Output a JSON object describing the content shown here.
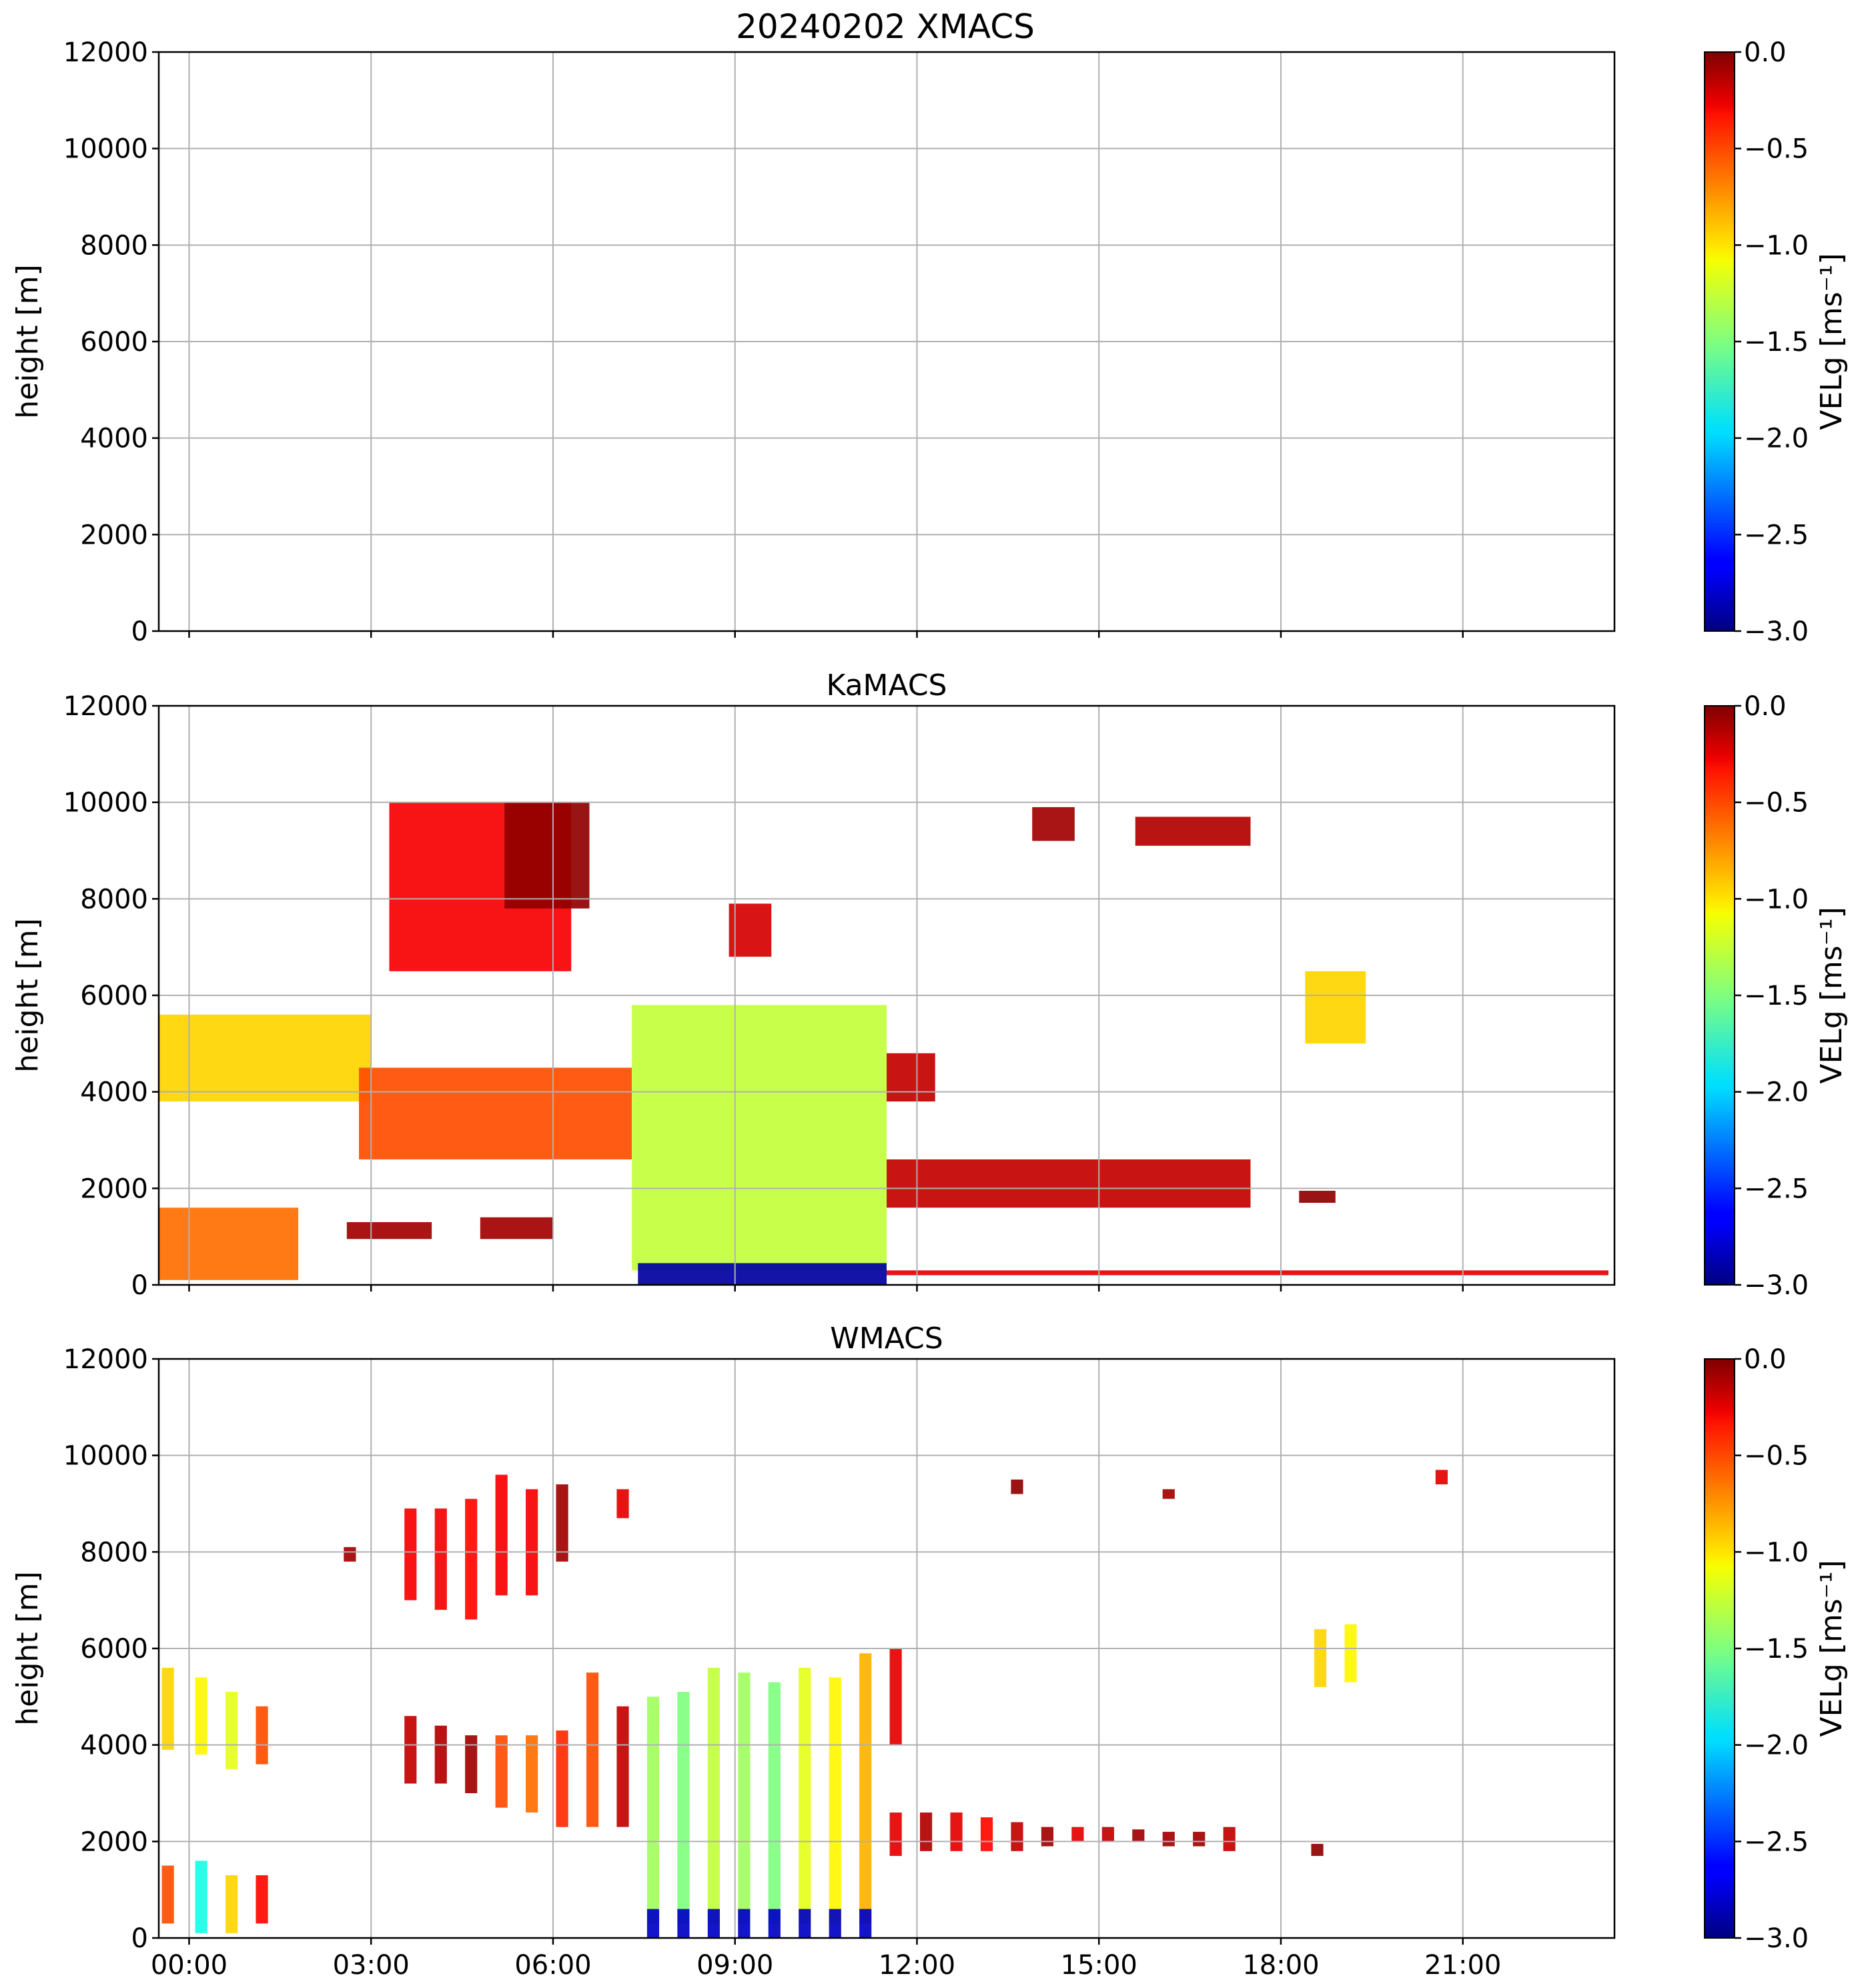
{
  "figure_title": "20240202 XMACS",
  "colormap": "jet",
  "chart_data": [
    {
      "type": "heatmap",
      "title": "",
      "panel": "XMACS",
      "ylabel": "height [m]",
      "xlabel": "",
      "ylim": [
        0,
        12000
      ],
      "xlim_hours": [
        -0.5,
        23.5
      ],
      "yticks": [
        0,
        2000,
        4000,
        6000,
        8000,
        10000,
        12000
      ],
      "xtick_hours": [
        0,
        3,
        6,
        9,
        12,
        15,
        18,
        21
      ],
      "xtick_labels": [],
      "colorbar": {
        "label": "VELg [ms⁻¹]",
        "range": [
          -3.0,
          0.0
        ],
        "ticks": [
          0.0,
          -0.5,
          -1.0,
          -1.5,
          -2.0,
          -2.5,
          -3.0
        ],
        "tick_labels": [
          "0.0",
          "−0.5",
          "−1.0",
          "−1.5",
          "−2.0",
          "−2.5",
          "−3.0"
        ]
      },
      "grid": true,
      "regions": []
    },
    {
      "type": "heatmap",
      "title": "KaMACS",
      "panel": "KaMACS",
      "ylabel": "height [m]",
      "xlabel": "",
      "ylim": [
        0,
        12000
      ],
      "xlim_hours": [
        -0.5,
        23.5
      ],
      "yticks": [
        0,
        2000,
        4000,
        6000,
        8000,
        10000,
        12000
      ],
      "xtick_hours": [
        0,
        3,
        6,
        9,
        12,
        15,
        18,
        21
      ],
      "xtick_labels": [],
      "colorbar": {
        "label": "VELg [ms⁻¹]",
        "range": [
          -3.0,
          0.0
        ],
        "ticks": [
          0.0,
          -0.5,
          -1.0,
          -1.5,
          -2.0,
          -2.5,
          -3.0
        ],
        "tick_labels": [
          "0.0",
          "−0.5",
          "−1.0",
          "−1.5",
          "−2.0",
          "−2.5",
          "−3.0"
        ]
      },
      "grid": true,
      "regions": [
        {
          "name": "upper-cirrus-main",
          "t0": 3.3,
          "t1": 6.3,
          "h0": 6500,
          "h1": 10000,
          "v": -0.35
        },
        {
          "name": "upper-cirrus-dark",
          "t0": 5.2,
          "t1": 6.6,
          "h0": 7800,
          "h1": 10000,
          "v": -0.05
        },
        {
          "name": "cirrus-08h",
          "t0": 8.9,
          "t1": 9.6,
          "h0": 6800,
          "h1": 7900,
          "v": -0.25
        },
        {
          "name": "cirrus-13h",
          "t0": 13.9,
          "t1": 14.6,
          "h0": 9200,
          "h1": 9900,
          "v": -0.1
        },
        {
          "name": "cirrus-15h",
          "t0": 15.6,
          "t1": 17.5,
          "h0": 9100,
          "h1": 9700,
          "v": -0.15
        },
        {
          "name": "shower-18h",
          "t0": 18.4,
          "t1": 19.4,
          "h0": 5000,
          "h1": 6500,
          "v": -1.0
        },
        {
          "name": "slanted-layer-00h",
          "t0": -0.5,
          "t1": 3.0,
          "h0": 3800,
          "h1": 5600,
          "v": -1.0
        },
        {
          "name": "mid-layer-03h",
          "t0": 2.8,
          "t1": 7.3,
          "h0": 2600,
          "h1": 4500,
          "v": -0.6
        },
        {
          "name": "main-precip",
          "t0": 7.3,
          "t1": 11.5,
          "h0": 300,
          "h1": 5800,
          "v": -1.3
        },
        {
          "name": "precip-surface-fast",
          "t0": 7.4,
          "t1": 11.5,
          "h0": 0,
          "h1": 450,
          "v": -2.9
        },
        {
          "name": "tail-12h",
          "t0": 11.5,
          "t1": 12.3,
          "h0": 3800,
          "h1": 4800,
          "v": -0.2
        },
        {
          "name": "low-layer-12h",
          "t0": 11.5,
          "t1": 17.5,
          "h0": 1600,
          "h1": 2600,
          "v": -0.2
        },
        {
          "name": "spot-18h",
          "t0": 18.3,
          "t1": 18.9,
          "h0": 1700,
          "h1": 1950,
          "v": -0.05
        },
        {
          "name": "boundary-00h",
          "t0": -0.5,
          "t1": 1.8,
          "h0": 100,
          "h1": 1600,
          "v": -0.7
        },
        {
          "name": "boundary-02h",
          "t0": 2.6,
          "t1": 4.0,
          "h0": 950,
          "h1": 1300,
          "v": -0.1
        },
        {
          "name": "boundary-05h",
          "t0": 4.8,
          "t1": 6.0,
          "h0": 950,
          "h1": 1400,
          "v": -0.1
        },
        {
          "name": "surface-clutter",
          "t0": 11.5,
          "t1": 23.4,
          "h0": 200,
          "h1": 300,
          "v": -0.3
        }
      ]
    },
    {
      "type": "heatmap",
      "title": "WMACS",
      "panel": "WMACS",
      "ylabel": "height [m]",
      "xlabel": "",
      "ylim": [
        0,
        12000
      ],
      "xlim_hours": [
        -0.5,
        23.5
      ],
      "yticks": [
        0,
        2000,
        4000,
        6000,
        8000,
        10000,
        12000
      ],
      "xtick_hours": [
        0,
        3,
        6,
        9,
        12,
        15,
        18,
        21
      ],
      "xtick_labels": [
        "00:00",
        "03:00",
        "06:00",
        "09:00",
        "12:00",
        "15:00",
        "18:00",
        "21:00"
      ],
      "colorbar": {
        "label": "VELg [ms⁻¹]",
        "range": [
          -3.0,
          0.0
        ],
        "ticks": [
          0.0,
          -0.5,
          -1.0,
          -1.5,
          -2.0,
          -2.5,
          -3.0
        ],
        "tick_labels": [
          "0.0",
          "−0.5",
          "−1.0",
          "−1.5",
          "−2.0",
          "−2.5",
          "−3.0"
        ]
      },
      "grid": true,
      "regions": [
        {
          "name": "strip-00h",
          "t0": -0.45,
          "t1": -0.25,
          "h0": 3900,
          "h1": 5600,
          "v": -1.0
        },
        {
          "name": "strip-00h-low",
          "t0": -0.45,
          "t1": -0.25,
          "h0": 300,
          "h1": 1500,
          "v": -0.6
        },
        {
          "name": "strip-00.5h",
          "t0": 0.1,
          "t1": 0.3,
          "h0": 3800,
          "h1": 5400,
          "v": -1.1
        },
        {
          "name": "strip-00.5h-low",
          "t0": 0.1,
          "t1": 0.3,
          "h0": 100,
          "h1": 1600,
          "v": -1.8
        },
        {
          "name": "strip-01h",
          "t0": 0.6,
          "t1": 0.8,
          "h0": 3500,
          "h1": 5100,
          "v": -1.2
        },
        {
          "name": "strip-01h-low",
          "t0": 0.6,
          "t1": 0.8,
          "h0": 100,
          "h1": 1300,
          "v": -1.0
        },
        {
          "name": "strip-01.5h",
          "t0": 1.1,
          "t1": 1.3,
          "h0": 3600,
          "h1": 4800,
          "v": -0.6
        },
        {
          "name": "strip-01.5h-low",
          "t0": 1.1,
          "t1": 1.3,
          "h0": 300,
          "h1": 1300,
          "v": -0.4
        },
        {
          "name": "cirrus-strip-1",
          "t0": 3.55,
          "t1": 3.75,
          "h0": 7000,
          "h1": 8900,
          "v": -0.35
        },
        {
          "name": "cirrus-strip-2",
          "t0": 4.05,
          "t1": 4.25,
          "h0": 6800,
          "h1": 8900,
          "v": -0.35
        },
        {
          "name": "cirrus-strip-3",
          "t0": 4.55,
          "t1": 4.75,
          "h0": 6600,
          "h1": 9100,
          "v": -0.4
        },
        {
          "name": "cirrus-strip-4",
          "t0": 5.05,
          "t1": 5.25,
          "h0": 7100,
          "h1": 9600,
          "v": -0.35
        },
        {
          "name": "cirrus-strip-5",
          "t0": 5.55,
          "t1": 5.75,
          "h0": 7100,
          "h1": 9300,
          "v": -0.35
        },
        {
          "name": "cirrus-strip-6",
          "t0": 6.05,
          "t1": 6.25,
          "h0": 7800,
          "h1": 9400,
          "v": -0.1
        },
        {
          "name": "mid-strip-1",
          "t0": 3.55,
          "t1": 3.75,
          "h0": 3200,
          "h1": 4600,
          "v": -0.2
        },
        {
          "name": "mid-strip-2",
          "t0": 4.05,
          "t1": 4.25,
          "h0": 3200,
          "h1": 4400,
          "v": -0.15
        },
        {
          "name": "mid-strip-3",
          "t0": 4.55,
          "t1": 4.75,
          "h0": 3000,
          "h1": 4200,
          "v": -0.1
        },
        {
          "name": "mid-strip-4",
          "t0": 5.05,
          "t1": 5.25,
          "h0": 2700,
          "h1": 4200,
          "v": -0.6
        },
        {
          "name": "mid-strip-5",
          "t0": 5.55,
          "t1": 5.75,
          "h0": 2600,
          "h1": 4200,
          "v": -0.7
        },
        {
          "name": "mid-strip-6",
          "t0": 6.05,
          "t1": 6.25,
          "h0": 2300,
          "h1": 4300,
          "v": -0.5
        },
        {
          "name": "mid-strip-7",
          "t0": 6.55,
          "t1": 6.75,
          "h0": 2300,
          "h1": 5500,
          "v": -0.6
        },
        {
          "name": "mid-strip-8",
          "t0": 7.05,
          "t1": 7.25,
          "h0": 2300,
          "h1": 4800,
          "v": -0.2
        },
        {
          "name": "precip-strip-1",
          "t0": 7.55,
          "t1": 7.75,
          "h0": 300,
          "h1": 5000,
          "v": -1.4
        },
        {
          "name": "precip-strip-2",
          "t0": 8.05,
          "t1": 8.25,
          "h0": 300,
          "h1": 5100,
          "v": -1.5
        },
        {
          "name": "precip-strip-3",
          "t0": 8.55,
          "t1": 8.75,
          "h0": 300,
          "h1": 5600,
          "v": -1.3
        },
        {
          "name": "precip-strip-4",
          "t0": 9.05,
          "t1": 9.25,
          "h0": 300,
          "h1": 5500,
          "v": -1.4
        },
        {
          "name": "precip-strip-5",
          "t0": 9.55,
          "t1": 9.75,
          "h0": 300,
          "h1": 5300,
          "v": -1.5
        },
        {
          "name": "precip-strip-6",
          "t0": 10.05,
          "t1": 10.25,
          "h0": 300,
          "h1": 5600,
          "v": -1.2
        },
        {
          "name": "precip-strip-7",
          "t0": 10.55,
          "t1": 10.75,
          "h0": 300,
          "h1": 5400,
          "v": -1.1
        },
        {
          "name": "precip-strip-8",
          "t0": 11.05,
          "t1": 11.25,
          "h0": 300,
          "h1": 5900,
          "v": -0.9
        },
        {
          "name": "precip-base-1",
          "t0": 7.55,
          "t1": 7.75,
          "h0": 0,
          "h1": 600,
          "v": -2.8
        },
        {
          "name": "precip-base-2",
          "t0": 8.05,
          "t1": 8.25,
          "h0": 0,
          "h1": 600,
          "v": -2.8
        },
        {
          "name": "precip-base-3",
          "t0": 8.55,
          "t1": 8.75,
          "h0": 0,
          "h1": 600,
          "v": -2.8
        },
        {
          "name": "precip-base-4",
          "t0": 9.05,
          "t1": 9.25,
          "h0": 0,
          "h1": 600,
          "v": -2.8
        },
        {
          "name": "precip-base-5",
          "t0": 9.55,
          "t1": 9.75,
          "h0": 0,
          "h1": 600,
          "v": -2.8
        },
        {
          "name": "precip-base-6",
          "t0": 10.05,
          "t1": 10.25,
          "h0": 0,
          "h1": 600,
          "v": -2.8
        },
        {
          "name": "precip-base-7",
          "t0": 10.55,
          "t1": 10.75,
          "h0": 0,
          "h1": 600,
          "v": -2.8
        },
        {
          "name": "precip-base-8",
          "t0": 11.05,
          "t1": 11.25,
          "h0": 0,
          "h1": 600,
          "v": -2.8
        },
        {
          "name": "tail-strip-12h",
          "t0": 11.55,
          "t1": 11.75,
          "h0": 4000,
          "h1": 6000,
          "v": -0.3
        },
        {
          "name": "low-strip-1",
          "t0": 11.55,
          "t1": 11.75,
          "h0": 1700,
          "h1": 2600,
          "v": -0.3
        },
        {
          "name": "low-strip-2",
          "t0": 12.05,
          "t1": 12.25,
          "h0": 1800,
          "h1": 2600,
          "v": -0.15
        },
        {
          "name": "low-strip-3",
          "t0": 12.55,
          "t1": 12.75,
          "h0": 1800,
          "h1": 2600,
          "v": -0.3
        },
        {
          "name": "low-strip-4",
          "t0": 13.05,
          "t1": 13.25,
          "h0": 1800,
          "h1": 2500,
          "v": -0.4
        },
        {
          "name": "low-strip-5",
          "t0": 13.55,
          "t1": 13.75,
          "h0": 1800,
          "h1": 2400,
          "v": -0.2
        },
        {
          "name": "low-strip-6",
          "t0": 14.05,
          "t1": 14.25,
          "h0": 1900,
          "h1": 2300,
          "v": -0.1
        },
        {
          "name": "low-strip-7",
          "t0": 14.55,
          "t1": 14.75,
          "h0": 2000,
          "h1": 2300,
          "v": -0.3
        },
        {
          "name": "low-strip-8",
          "t0": 15.05,
          "t1": 15.25,
          "h0": 2000,
          "h1": 2300,
          "v": -0.2
        },
        {
          "name": "low-strip-9",
          "t0": 15.55,
          "t1": 15.75,
          "h0": 2000,
          "h1": 2250,
          "v": -0.1
        },
        {
          "name": "low-strip-10",
          "t0": 16.05,
          "t1": 16.25,
          "h0": 1900,
          "h1": 2200,
          "v": -0.1
        },
        {
          "name": "low-strip-11",
          "t0": 16.55,
          "t1": 16.75,
          "h0": 1900,
          "h1": 2200,
          "v": -0.1
        },
        {
          "name": "low-strip-12",
          "t0": 17.05,
          "t1": 17.25,
          "h0": 1800,
          "h1": 2300,
          "v": -0.2
        },
        {
          "name": "spot-18h",
          "t0": 18.5,
          "t1": 18.7,
          "h0": 1700,
          "h1": 1950,
          "v": -0.05
        },
        {
          "name": "shower-18h-a",
          "t0": 18.55,
          "t1": 18.75,
          "h0": 5200,
          "h1": 6400,
          "v": -1.0
        },
        {
          "name": "shower-18h-b",
          "t0": 19.05,
          "t1": 19.25,
          "h0": 5300,
          "h1": 6500,
          "v": -1.1
        },
        {
          "name": "cirrus-13h",
          "t0": 13.55,
          "t1": 13.75,
          "h0": 9200,
          "h1": 9500,
          "v": -0.05
        },
        {
          "name": "cirrus-16h",
          "t0": 16.05,
          "t1": 16.25,
          "h0": 9100,
          "h1": 9300,
          "v": -0.1
        },
        {
          "name": "cirrus-20h",
          "t0": 20.55,
          "t1": 20.75,
          "h0": 9400,
          "h1": 9700,
          "v": -0.3
        },
        {
          "name": "cirrus-02h",
          "t0": 2.55,
          "t1": 2.75,
          "h0": 7800,
          "h1": 8100,
          "v": -0.1
        },
        {
          "name": "cirrus-07h",
          "t0": 7.05,
          "t1": 7.25,
          "h0": 8700,
          "h1": 9300,
          "v": -0.3
        }
      ]
    }
  ]
}
